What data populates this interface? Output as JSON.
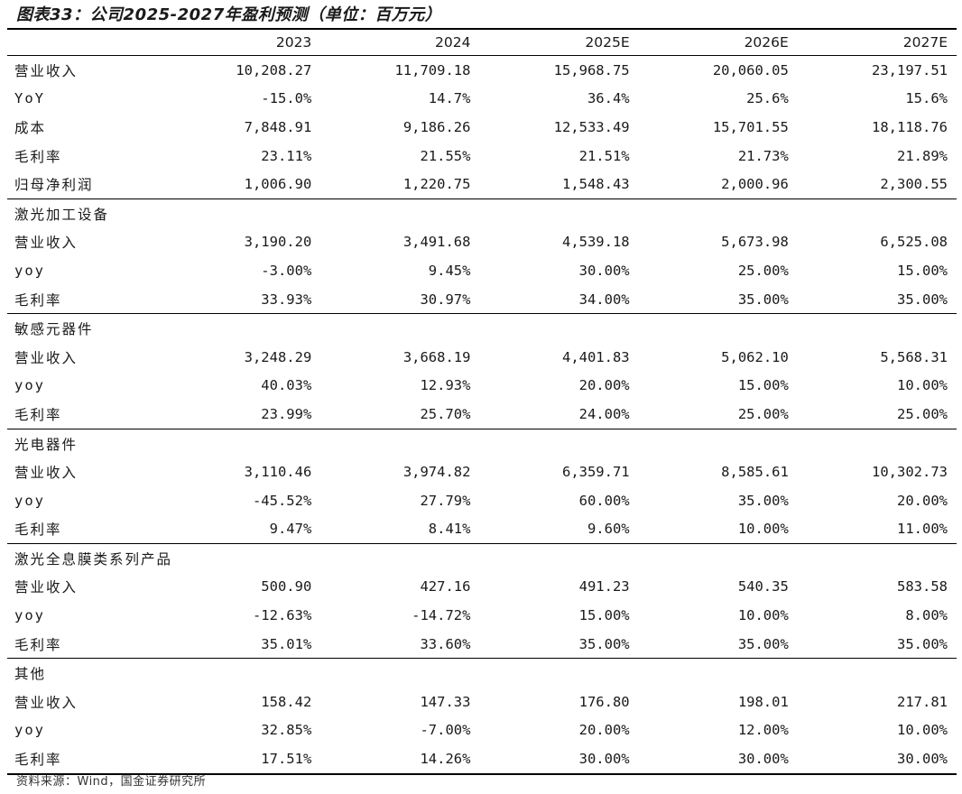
{
  "title": "图表33：公司2025-2027年盈利预测（单位：百万元）",
  "columns": [
    "2023",
    "2024",
    "2025E",
    "2026E",
    "2027E"
  ],
  "sections": [
    {
      "name": "",
      "rows": [
        {
          "label": "营业收入",
          "values": [
            "10,208.27",
            "11,709.18",
            "15,968.75",
            "20,060.05",
            "23,197.51"
          ]
        },
        {
          "label": "YoY",
          "values": [
            "-15.0%",
            "14.7%",
            "36.4%",
            "25.6%",
            "15.6%"
          ]
        },
        {
          "label": "成本",
          "values": [
            "7,848.91",
            "9,186.26",
            "12,533.49",
            "15,701.55",
            "18,118.76"
          ]
        },
        {
          "label": "毛利率",
          "values": [
            "23.11%",
            "21.55%",
            "21.51%",
            "21.73%",
            "21.89%"
          ]
        },
        {
          "label": "归母净利润",
          "values": [
            "1,006.90",
            "1,220.75",
            "1,548.43",
            "2,000.96",
            "2,300.55"
          ]
        }
      ]
    },
    {
      "name": "激光加工设备",
      "rows": [
        {
          "label": "营业收入",
          "values": [
            "3,190.20",
            "3,491.68",
            "4,539.18",
            "5,673.98",
            "6,525.08"
          ]
        },
        {
          "label": "yoy",
          "values": [
            "-3.00%",
            "9.45%",
            "30.00%",
            "25.00%",
            "15.00%"
          ]
        },
        {
          "label": "毛利率",
          "values": [
            "33.93%",
            "30.97%",
            "34.00%",
            "35.00%",
            "35.00%"
          ]
        }
      ]
    },
    {
      "name": "敏感元器件",
      "rows": [
        {
          "label": "营业收入",
          "values": [
            "3,248.29",
            "3,668.19",
            "4,401.83",
            "5,062.10",
            "5,568.31"
          ]
        },
        {
          "label": "yoy",
          "values": [
            "40.03%",
            "12.93%",
            "20.00%",
            "15.00%",
            "10.00%"
          ]
        },
        {
          "label": "毛利率",
          "values": [
            "23.99%",
            "25.70%",
            "24.00%",
            "25.00%",
            "25.00%"
          ]
        }
      ]
    },
    {
      "name": "光电器件",
      "rows": [
        {
          "label": "营业收入",
          "values": [
            "3,110.46",
            "3,974.82",
            "6,359.71",
            "8,585.61",
            "10,302.73"
          ]
        },
        {
          "label": "yoy",
          "values": [
            "-45.52%",
            "27.79%",
            "60.00%",
            "35.00%",
            "20.00%"
          ]
        },
        {
          "label": "毛利率",
          "values": [
            "9.47%",
            "8.41%",
            "9.60%",
            "10.00%",
            "11.00%"
          ]
        }
      ]
    },
    {
      "name": "激光全息膜类系列产品",
      "rows": [
        {
          "label": "营业收入",
          "values": [
            "500.90",
            "427.16",
            "491.23",
            "540.35",
            "583.58"
          ]
        },
        {
          "label": "yoy",
          "values": [
            "-12.63%",
            "-14.72%",
            "15.00%",
            "10.00%",
            "8.00%"
          ]
        },
        {
          "label": "毛利率",
          "values": [
            "35.01%",
            "33.60%",
            "35.00%",
            "35.00%",
            "35.00%"
          ]
        }
      ]
    },
    {
      "name": "其他",
      "rows": [
        {
          "label": "营业收入",
          "values": [
            "158.42",
            "147.33",
            "176.80",
            "198.01",
            "217.81"
          ]
        },
        {
          "label": "yoy",
          "values": [
            "32.85%",
            "-7.00%",
            "20.00%",
            "12.00%",
            "10.00%"
          ]
        },
        {
          "label": "毛利率",
          "values": [
            "17.51%",
            "14.26%",
            "30.00%",
            "30.00%",
            "30.00%"
          ]
        }
      ]
    }
  ],
  "source": "资料来源：Wind，国金证券研究所"
}
